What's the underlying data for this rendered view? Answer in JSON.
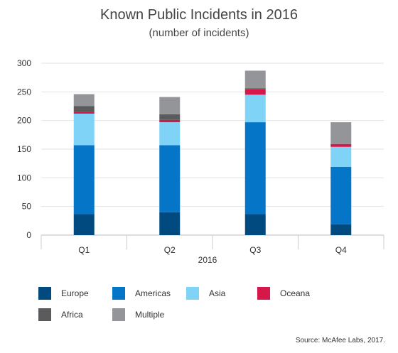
{
  "title": "Known Public Incidents in 2016",
  "subtitle": "(number of incidents)",
  "source": "Source: McAfee Labs, 2017.",
  "chart_data": {
    "type": "bar",
    "stacked": true,
    "title": "Known Public Incidents in 2016",
    "subtitle": "(number of incidents)",
    "categories": [
      "Q1",
      "Q2",
      "Q3",
      "Q4"
    ],
    "xlabel": "2016",
    "ylabel": "",
    "ylim": [
      0,
      300
    ],
    "yticks": [
      0,
      50,
      100,
      150,
      200,
      250,
      300
    ],
    "grid": true,
    "legend_position": "bottom",
    "series": [
      {
        "name": "Europe",
        "color": "#004a7f",
        "values": [
          37,
          40,
          37,
          19
        ]
      },
      {
        "name": "Americas",
        "color": "#0575c7",
        "values": [
          120,
          117,
          160,
          100
        ]
      },
      {
        "name": "Asia",
        "color": "#7fd3f7",
        "values": [
          55,
          40,
          48,
          35
        ]
      },
      {
        "name": "Oceana",
        "color": "#d6174a",
        "values": [
          3,
          4,
          10,
          5
        ]
      },
      {
        "name": "Africa",
        "color": "#5b5b5d",
        "values": [
          10,
          10,
          1,
          0
        ]
      },
      {
        "name": "Multiple",
        "color": "#939598",
        "values": [
          21,
          30,
          31,
          38
        ]
      }
    ]
  }
}
